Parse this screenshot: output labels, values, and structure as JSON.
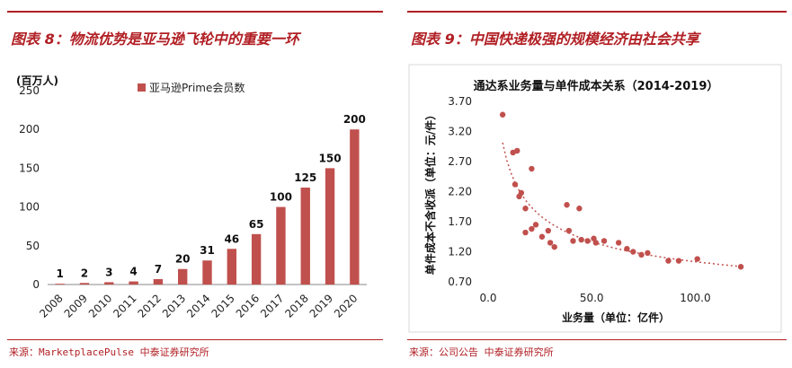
{
  "left_panel": {
    "figure_title": "图表 8：物流优势是亚马逊飞轮中的重要一环",
    "source": "来源：MarketplacePulse 中泰证券研究所"
  },
  "right_panel": {
    "figure_title": "图表 9：中国快递极强的规模经济由社会共享",
    "source": "来源：公司公告 中泰证券研究所"
  },
  "colors": {
    "accent": "#b11f24",
    "bar": "#c0504d",
    "point": "#c0504d"
  },
  "chart_data": [
    {
      "type": "bar",
      "title": "",
      "unit_label": "(百万人)",
      "categories": [
        "2008",
        "2009",
        "2010",
        "2011",
        "2012",
        "2013",
        "2014",
        "2015",
        "2016",
        "2017",
        "2018",
        "2019",
        "2020"
      ],
      "series": [
        {
          "name": "亚马逊Prime会员数",
          "values": [
            1,
            2,
            3,
            4,
            7,
            20,
            31,
            46,
            65,
            100,
            125,
            150,
            200
          ]
        }
      ],
      "ylim": [
        0,
        250
      ],
      "yticks": [
        "0",
        "50",
        "100",
        "150",
        "200",
        "250"
      ],
      "ytick_values": [
        0,
        50,
        100,
        150,
        200,
        250
      ],
      "legend": "top",
      "grid": false
    },
    {
      "type": "scatter",
      "title": "通达系业务量与单件成本关系（2014-2019）",
      "xlabel": "业务量（单位：亿件）",
      "ylabel": "单件成本不含收派（单位：元/件）",
      "xlim": [
        0,
        125
      ],
      "ylim": [
        0.7,
        3.7
      ],
      "xticks": [
        "0.0",
        "50.0",
        "100.0"
      ],
      "xtick_values": [
        0,
        50,
        100
      ],
      "yticks": [
        "0.70",
        "1.20",
        "1.70",
        "2.20",
        "2.70",
        "3.20",
        "3.70"
      ],
      "ytick_values": [
        0.7,
        1.2,
        1.7,
        2.2,
        2.7,
        3.2,
        3.7
      ],
      "trendline": "power",
      "grid": false,
      "points": [
        {
          "x": 7,
          "y": 3.48
        },
        {
          "x": 12,
          "y": 2.85
        },
        {
          "x": 14,
          "y": 2.88
        },
        {
          "x": 21,
          "y": 2.58
        },
        {
          "x": 13,
          "y": 2.32
        },
        {
          "x": 15,
          "y": 2.12
        },
        {
          "x": 16,
          "y": 2.18
        },
        {
          "x": 18,
          "y": 1.92
        },
        {
          "x": 18,
          "y": 1.52
        },
        {
          "x": 21,
          "y": 1.58
        },
        {
          "x": 23,
          "y": 1.65
        },
        {
          "x": 26,
          "y": 1.45
        },
        {
          "x": 29,
          "y": 1.55
        },
        {
          "x": 30,
          "y": 1.35
        },
        {
          "x": 32,
          "y": 1.28
        },
        {
          "x": 38,
          "y": 1.98
        },
        {
          "x": 39,
          "y": 1.55
        },
        {
          "x": 41,
          "y": 1.38
        },
        {
          "x": 44,
          "y": 1.92
        },
        {
          "x": 45,
          "y": 1.4
        },
        {
          "x": 48,
          "y": 1.38
        },
        {
          "x": 51,
          "y": 1.42
        },
        {
          "x": 52,
          "y": 1.35
        },
        {
          "x": 56,
          "y": 1.38
        },
        {
          "x": 63,
          "y": 1.35
        },
        {
          "x": 67,
          "y": 1.25
        },
        {
          "x": 70,
          "y": 1.2
        },
        {
          "x": 74,
          "y": 1.15
        },
        {
          "x": 77,
          "y": 1.18
        },
        {
          "x": 87,
          "y": 1.05
        },
        {
          "x": 92,
          "y": 1.05
        },
        {
          "x": 101,
          "y": 1.08
        },
        {
          "x": 122,
          "y": 0.95
        }
      ]
    }
  ]
}
